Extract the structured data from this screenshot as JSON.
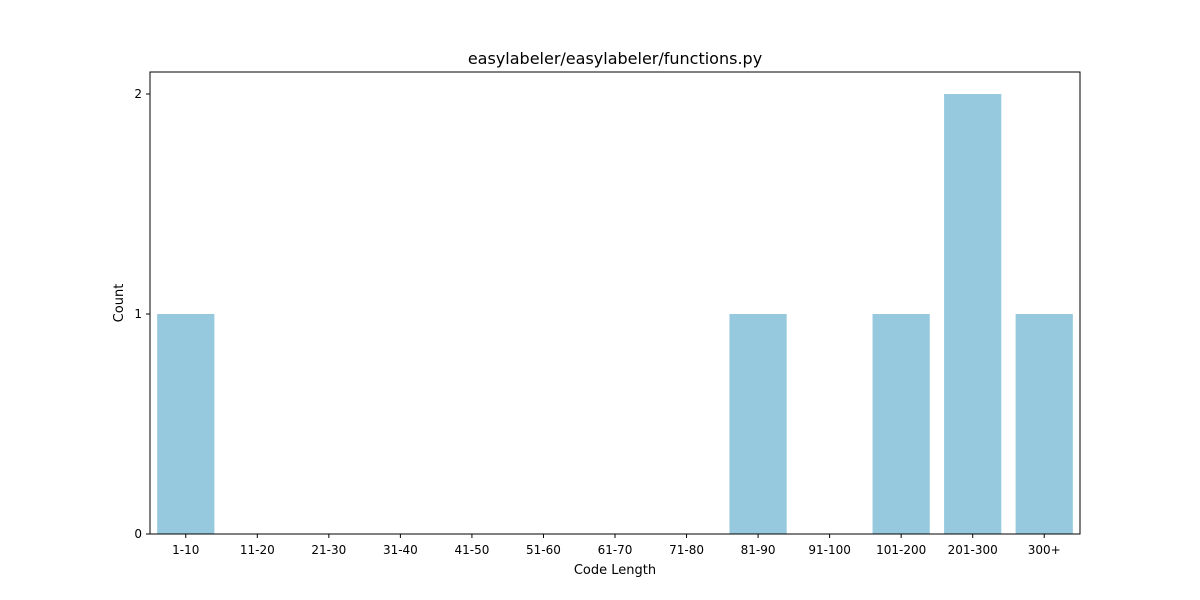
{
  "chart_data": {
    "type": "bar",
    "title": "easylabeler/easylabeler/functions.py",
    "xlabel": "Code Length",
    "ylabel": "Count",
    "categories": [
      "1-10",
      "11-20",
      "21-30",
      "31-40",
      "41-50",
      "51-60",
      "61-70",
      "71-80",
      "81-90",
      "91-100",
      "101-200",
      "201-300",
      "300+"
    ],
    "values": [
      1,
      0,
      0,
      0,
      0,
      0,
      0,
      0,
      1,
      0,
      1,
      2,
      1
    ],
    "ylim": [
      0,
      2.1
    ],
    "yticks": [
      0,
      1,
      2
    ],
    "grid": false,
    "bar_color": "#96c9de"
  }
}
